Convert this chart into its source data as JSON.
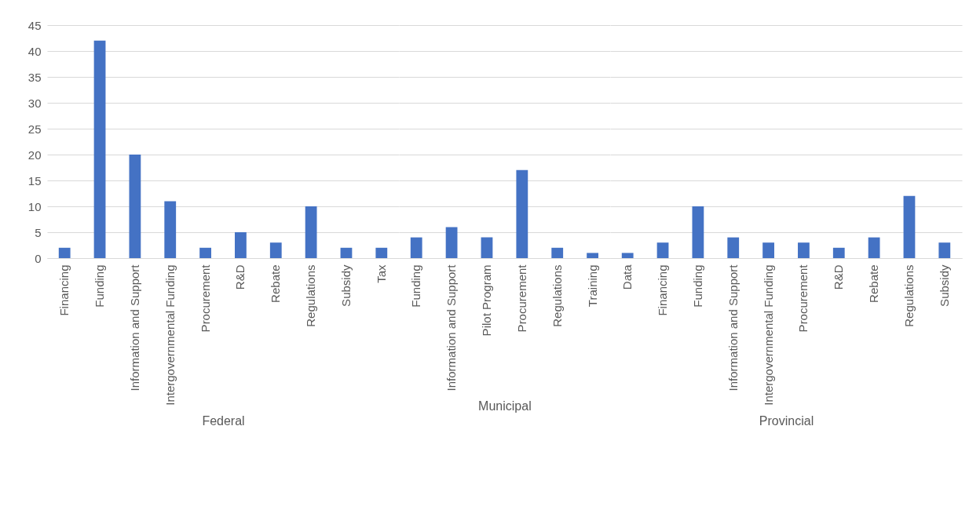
{
  "chart_data": [
    {
      "type": "bar",
      "xlabel": "Federal",
      "categories": [
        "Financing",
        "Funding",
        "Information and Support",
        "Intergovernmental Funding",
        "Procurement",
        "R&D",
        "Rebate",
        "Regulations",
        "Subsidy",
        "Tax"
      ],
      "values": [
        2,
        42,
        20,
        11,
        2,
        5,
        3,
        10,
        2,
        2
      ],
      "color": "#4472c4",
      "ylim": [
        0,
        45
      ],
      "yticks": [
        0,
        5,
        10,
        15,
        20,
        25,
        30,
        35,
        40,
        45
      ],
      "grid": "y"
    },
    {
      "type": "bar",
      "xlabel": "Municipal",
      "categories": [
        "Funding",
        "Information and Support",
        "Pilot Program",
        "Procurement",
        "Regulations",
        "Training"
      ],
      "values": [
        4,
        6,
        4,
        17,
        2,
        1
      ],
      "color": "#4472c4",
      "ylim": [
        0,
        45
      ],
      "yticks": [
        0,
        5,
        10,
        15,
        20,
        25,
        30,
        35,
        40,
        45
      ],
      "grid": "y",
      "tick_labels": "x"
    },
    {
      "type": "bar",
      "xlabel": "Provincial",
      "categories": [
        "Data",
        "Financing",
        "Funding",
        "Information and Support",
        "Intergovernmental Funding",
        "Procurement",
        "R&D",
        "Rebate",
        "Regulations",
        "Subsidy"
      ],
      "values": [
        1,
        3,
        10,
        4,
        3,
        3,
        2,
        4,
        12,
        3
      ],
      "color": "#4472c4",
      "ylim": [
        0,
        45
      ],
      "yticks": [
        0,
        5,
        10,
        15,
        20,
        25,
        30,
        35,
        40,
        45
      ],
      "grid": "y",
      "tick_labels": "x"
    }
  ]
}
